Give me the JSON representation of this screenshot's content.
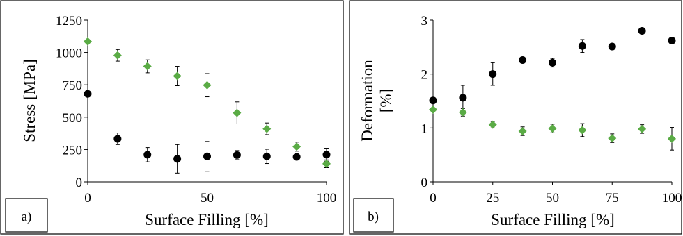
{
  "chart_data": [
    {
      "type": "scatter",
      "panel_label": "a)",
      "xlabel": "Surface Filling [%]",
      "ylabel": "Stress [MPa]",
      "xlim": [
        0,
        100
      ],
      "ylim": [
        0,
        1250
      ],
      "xticks": [
        "0",
        "50",
        "100"
      ],
      "yticks": [
        "0",
        "250",
        "500",
        "750",
        "1000",
        "1250"
      ],
      "series": [
        {
          "marker": "circle",
          "color": "#000000",
          "x": [
            0,
            12.5,
            25,
            37.5,
            50,
            62.5,
            75,
            87.5,
            100
          ],
          "y": [
            680,
            333,
            210,
            178,
            197,
            207,
            197,
            193,
            210
          ],
          "error": [
            0,
            45,
            55,
            110,
            115,
            35,
            55,
            0,
            50
          ]
        },
        {
          "marker": "diamond",
          "color": "#5aab45",
          "x": [
            0,
            12.5,
            25,
            37.5,
            50,
            62.5,
            75,
            87.5,
            100
          ],
          "y": [
            1085,
            978,
            893,
            818,
            747,
            533,
            410,
            272,
            140
          ],
          "error": [
            0,
            45,
            50,
            75,
            90,
            85,
            45,
            35,
            30
          ]
        }
      ]
    },
    {
      "type": "scatter",
      "panel_label": "b)",
      "xlabel": "Surface Filling [%]",
      "ylabel": "Deformation [%]",
      "ylabel_lines": [
        "Deformation",
        "[%]"
      ],
      "xlim": [
        0,
        100
      ],
      "ylim": [
        0,
        3
      ],
      "xticks": [
        "0",
        "25",
        "50",
        "75",
        "100"
      ],
      "yticks": [
        "0",
        "1",
        "2",
        "3"
      ],
      "series": [
        {
          "marker": "circle",
          "color": "#000000",
          "x": [
            0,
            12.5,
            25,
            37.5,
            50,
            62.5,
            75,
            87.5,
            100
          ],
          "y": [
            1.51,
            1.56,
            2.0,
            2.26,
            2.21,
            2.52,
            2.51,
            2.8,
            2.62
          ],
          "error": [
            0,
            0.23,
            0.21,
            0,
            0.08,
            0.12,
            0,
            0,
            0
          ]
        },
        {
          "marker": "diamond",
          "color": "#5aab45",
          "x": [
            0,
            12.5,
            25,
            37.5,
            50,
            62.5,
            75,
            87.5,
            100
          ],
          "y": [
            1.34,
            1.29,
            1.06,
            0.94,
            0.99,
            0.96,
            0.81,
            0.98,
            0.8
          ],
          "error": [
            0,
            0.07,
            0.06,
            0.08,
            0.08,
            0.12,
            0.08,
            0.08,
            0.21
          ]
        }
      ]
    }
  ]
}
